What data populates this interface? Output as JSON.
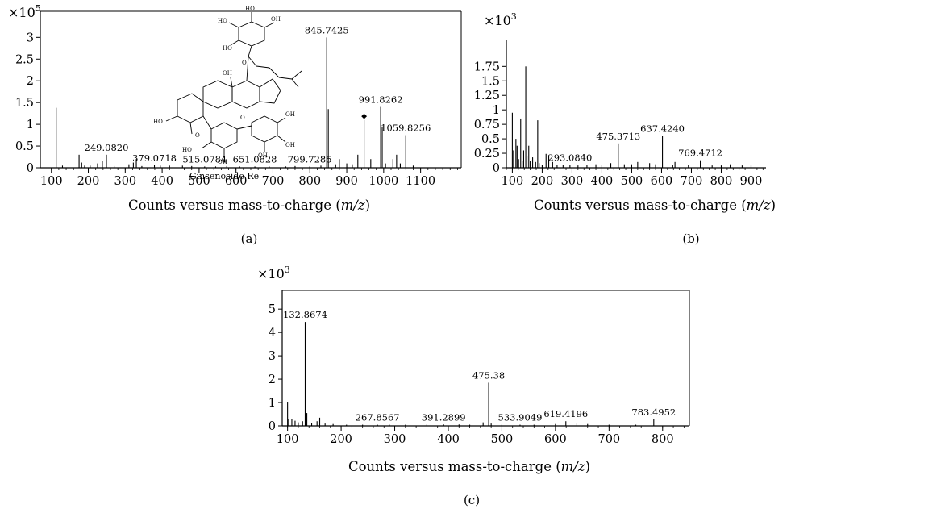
{
  "chart_data": [
    {
      "type": "bar",
      "panel_label": "(a)",
      "multiplier": {
        "base": "×10",
        "exp": "5"
      },
      "xlabel": {
        "pre": "Counts versus mass-to-charge (",
        "var": "m/z",
        "post": ")"
      },
      "xlim": [
        70,
        1210
      ],
      "ylim": [
        0,
        3.6
      ],
      "x_ticks": [
        100,
        200,
        300,
        400,
        500,
        600,
        700,
        800,
        900,
        1000,
        1100
      ],
      "y_ticks": [
        {
          "v": 0,
          "label": "0"
        },
        {
          "v": 0.5,
          "label": "0.5"
        },
        {
          "v": 1,
          "label": "1"
        },
        {
          "v": 1.5,
          "label": "1.5"
        },
        {
          "v": 2,
          "label": "2"
        },
        {
          "v": 2.5,
          "label": "2.5"
        },
        {
          "v": 3,
          "label": "3"
        }
      ],
      "peaks": [
        [
          113,
          1.38
        ],
        [
          130,
          0.05
        ],
        [
          175,
          0.3
        ],
        [
          182,
          0.12
        ],
        [
          190,
          0.05
        ],
        [
          205,
          0.05
        ],
        [
          225,
          0.1
        ],
        [
          238,
          0.15
        ],
        [
          249.08,
          0.3
        ],
        [
          270,
          0.04
        ],
        [
          310,
          0.08
        ],
        [
          322,
          0.12
        ],
        [
          330,
          0.2
        ],
        [
          345,
          0.04
        ],
        [
          379.07,
          0.06
        ],
        [
          395,
          0.05
        ],
        [
          420,
          0.05
        ],
        [
          455,
          0.05
        ],
        [
          480,
          0.04
        ],
        [
          515.08,
          0.03
        ],
        [
          545,
          0.03
        ],
        [
          575,
          0.04
        ],
        [
          610,
          0.03
        ],
        [
          651.08,
          0.03
        ],
        [
          690,
          0.03
        ],
        [
          735,
          0.03
        ],
        [
          760,
          0.04
        ],
        [
          799.73,
          0.03
        ],
        [
          830,
          0.05
        ],
        [
          845.74,
          3.0
        ],
        [
          850,
          1.35
        ],
        [
          870,
          0.08
        ],
        [
          880,
          0.2
        ],
        [
          900,
          0.1
        ],
        [
          915,
          0.08
        ],
        [
          930,
          0.3
        ],
        [
          947,
          1.1
        ],
        [
          965,
          0.2
        ],
        [
          991.83,
          1.4
        ],
        [
          996,
          0.95
        ],
        [
          1005,
          0.1
        ],
        [
          1025,
          0.2
        ],
        [
          1035,
          0.3
        ],
        [
          1045,
          0.1
        ],
        [
          1059.83,
          0.75
        ],
        [
          1080,
          0.05
        ]
      ],
      "peak_labels": [
        {
          "x": 249.08,
          "y": 0.3,
          "text": "249.0820"
        },
        {
          "x": 379.07,
          "y": 0.06,
          "text": "379.0718"
        },
        {
          "x": 515.08,
          "y": 0.03,
          "text": "515.0784"
        },
        {
          "x": 651.08,
          "y": 0.03,
          "text": "651.0828"
        },
        {
          "x": 799.73,
          "y": 0.03,
          "text": "799.7285"
        },
        {
          "x": 845.74,
          "y": 3.0,
          "text": "845.7425"
        },
        {
          "x": 991.83,
          "y": 1.4,
          "text": "991.8262"
        },
        {
          "x": 1059.83,
          "y": 0.75,
          "text": "1059.8256"
        }
      ],
      "marker": {
        "x": 947,
        "y": 1.1,
        "symbol": "◆"
      },
      "compound_name": "Ginsenoside Re"
    },
    {
      "type": "bar",
      "panel_label": "(b)",
      "multiplier": {
        "base": "×10",
        "exp": "3"
      },
      "xlabel": {
        "pre": "Counts versus mass-to-charge (",
        "var": "m/z",
        "post": ")"
      },
      "xlim": [
        80,
        950
      ],
      "ylim": [
        0,
        2.2
      ],
      "x_ticks": [
        100,
        200,
        300,
        400,
        500,
        600,
        700,
        800,
        900
      ],
      "y_ticks": [
        {
          "v": 0,
          "label": "0"
        },
        {
          "v": 0.25,
          "label": "0.25"
        },
        {
          "v": 0.5,
          "label": "0.5"
        },
        {
          "v": 0.75,
          "label": "0.75"
        },
        {
          "v": 1,
          "label": "1"
        },
        {
          "v": 1.25,
          "label": "1.25"
        },
        {
          "v": 1.5,
          "label": "1.5"
        },
        {
          "v": 1.75,
          "label": "1.75"
        }
      ],
      "peaks": [
        [
          100,
          0.95
        ],
        [
          104,
          0.3
        ],
        [
          112,
          0.5
        ],
        [
          116,
          0.38
        ],
        [
          121,
          0.15
        ],
        [
          128,
          0.85
        ],
        [
          133,
          0.12
        ],
        [
          138,
          0.3
        ],
        [
          145,
          1.75
        ],
        [
          149,
          0.2
        ],
        [
          155,
          0.38
        ],
        [
          160,
          0.12
        ],
        [
          168,
          0.18
        ],
        [
          178,
          0.1
        ],
        [
          185,
          0.82
        ],
        [
          190,
          0.08
        ],
        [
          200,
          0.05
        ],
        [
          213,
          0.24
        ],
        [
          222,
          0.2
        ],
        [
          235,
          0.1
        ],
        [
          250,
          0.05
        ],
        [
          270,
          0.05
        ],
        [
          293.08,
          0.05
        ],
        [
          320,
          0.04
        ],
        [
          350,
          0.05
        ],
        [
          380,
          0.06
        ],
        [
          400,
          0.05
        ],
        [
          430,
          0.08
        ],
        [
          455,
          0.42
        ],
        [
          475.37,
          0.06
        ],
        [
          500,
          0.06
        ],
        [
          520,
          0.1
        ],
        [
          560,
          0.08
        ],
        [
          580,
          0.06
        ],
        [
          603,
          0.55
        ],
        [
          637.42,
          0.05
        ],
        [
          645,
          0.1
        ],
        [
          690,
          0.05
        ],
        [
          730,
          0.13
        ],
        [
          769.47,
          0.04
        ],
        [
          800,
          0.04
        ],
        [
          830,
          0.06
        ],
        [
          870,
          0.04
        ],
        [
          900,
          0.05
        ]
      ],
      "peak_labels": [
        {
          "x": 293.08,
          "y": 0.05,
          "text": "293.0840"
        },
        {
          "x": 455,
          "y": 0.42,
          "text": "475.3713"
        },
        {
          "x": 603,
          "y": 0.55,
          "text": "637.4240"
        },
        {
          "x": 730,
          "y": 0.13,
          "text": "769.4712"
        }
      ]
    },
    {
      "type": "bar",
      "panel_label": "(c)",
      "multiplier": {
        "base": "×10",
        "exp": "3"
      },
      "xlabel": {
        "pre": "Counts versus mass-to-charge (",
        "var": "m/z",
        "post": ")"
      },
      "xlim": [
        90,
        850
      ],
      "ylim": [
        0,
        5.8
      ],
      "x_ticks": [
        100,
        200,
        300,
        400,
        500,
        600,
        700,
        800
      ],
      "y_ticks": [
        {
          "v": 0,
          "label": "0"
        },
        {
          "v": 1,
          "label": "1"
        },
        {
          "v": 2,
          "label": "2"
        },
        {
          "v": 3,
          "label": "3"
        },
        {
          "v": 4,
          "label": "4"
        },
        {
          "v": 5,
          "label": "5"
        }
      ],
      "peaks": [
        [
          100,
          1.0
        ],
        [
          102,
          0.3
        ],
        [
          108,
          0.3
        ],
        [
          114,
          0.22
        ],
        [
          120,
          0.15
        ],
        [
          128,
          0.2
        ],
        [
          132.87,
          4.45
        ],
        [
          136,
          0.55
        ],
        [
          145,
          0.12
        ],
        [
          155,
          0.2
        ],
        [
          160,
          0.35
        ],
        [
          170,
          0.1
        ],
        [
          185,
          0.08
        ],
        [
          210,
          0.05
        ],
        [
          240,
          0.05
        ],
        [
          267.86,
          0.05
        ],
        [
          290,
          0.05
        ],
        [
          320,
          0.05
        ],
        [
          360,
          0.06
        ],
        [
          391.29,
          0.06
        ],
        [
          420,
          0.06
        ],
        [
          440,
          0.05
        ],
        [
          465,
          0.15
        ],
        [
          475.38,
          1.85
        ],
        [
          480,
          0.1
        ],
        [
          500,
          0.05
        ],
        [
          533.9,
          0.05
        ],
        [
          560,
          0.05
        ],
        [
          600,
          0.08
        ],
        [
          619.42,
          0.2
        ],
        [
          640,
          0.1
        ],
        [
          660,
          0.08
        ],
        [
          700,
          0.05
        ],
        [
          750,
          0.05
        ],
        [
          783.5,
          0.28
        ]
      ],
      "peak_labels": [
        {
          "x": 132.87,
          "y": 4.45,
          "text": "132.8674"
        },
        {
          "x": 267.86,
          "y": 0.05,
          "text": "267.8567"
        },
        {
          "x": 391.29,
          "y": 0.06,
          "text": "391.2899"
        },
        {
          "x": 475.38,
          "y": 1.85,
          "text": "475.38"
        },
        {
          "x": 533.9,
          "y": 0.05,
          "text": "533.9049"
        },
        {
          "x": 619.42,
          "y": 0.2,
          "text": "619.4196"
        },
        {
          "x": 783.5,
          "y": 0.28,
          "text": "783.4952"
        }
      ]
    }
  ]
}
